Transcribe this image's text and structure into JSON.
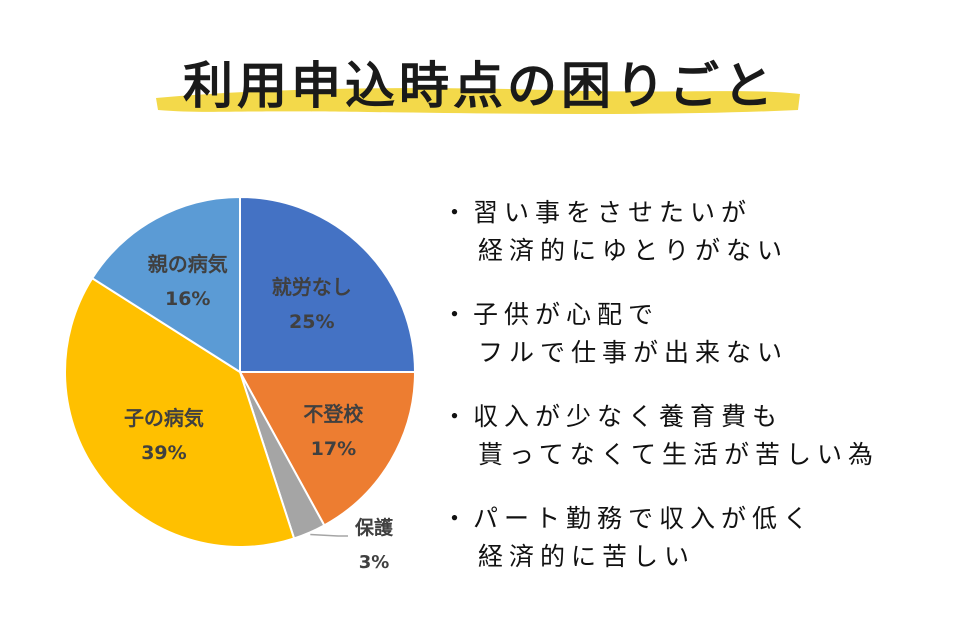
{
  "title": "利用申込時点の困りごと",
  "colors": {
    "highlight": "#f3d94a",
    "slice_blue": "#4472c4",
    "slice_orange": "#ed7d31",
    "slice_gray": "#a5a5a5",
    "slice_yellow": "#ffc000",
    "slice_lightblue": "#5b9bd5",
    "label_text": "#404040"
  },
  "chart_data": {
    "type": "pie",
    "slices": [
      {
        "label": "就労なし",
        "value": 25,
        "percent_label": "25%",
        "color": "#4472c4"
      },
      {
        "label": "不登校",
        "value": 17,
        "percent_label": "17%",
        "color": "#ed7d31"
      },
      {
        "label": "保護",
        "value": 3,
        "percent_label": "3%",
        "color": "#a5a5a5"
      },
      {
        "label": "子の病気",
        "value": 39,
        "percent_label": "39%",
        "color": "#ffc000"
      },
      {
        "label": "親の病気",
        "value": 16,
        "percent_label": "16%",
        "color": "#5b9bd5"
      }
    ]
  },
  "notes": [
    {
      "lines": [
        "習い事をさせたいが",
        "経済的にゆとりがない"
      ]
    },
    {
      "lines": [
        "子供が心配で",
        "フルで仕事が出来ない"
      ]
    },
    {
      "lines": [
        "収入が少なく養育費も",
        "貰ってなくて生活が苦しい為"
      ]
    },
    {
      "lines": [
        "パート勤務で収入が低く",
        "経済的に苦しい"
      ]
    }
  ]
}
